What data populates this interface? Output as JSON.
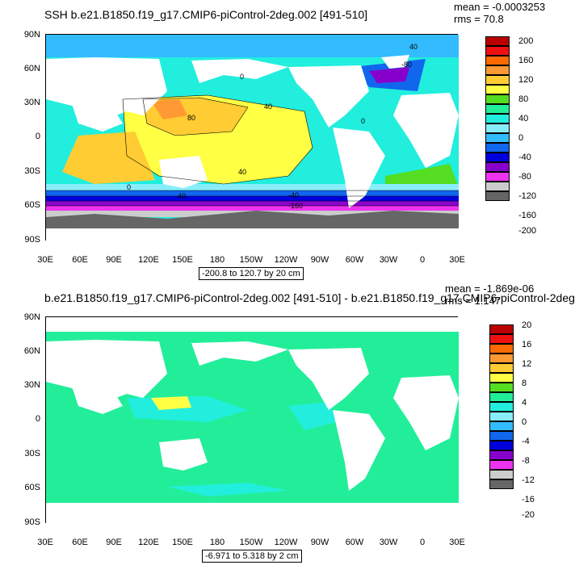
{
  "panels": [
    {
      "title": "SSH b.e21.B1850.f19_g17.CMIP6-piControl-2deg.002 [491-510]",
      "mean": "mean = -0.0003253",
      "rms": "rms = 70.8",
      "range_label": "-200.8 to 120.7 by 20 cm",
      "colorbar_labels": [
        "200",
        "160",
        "120",
        "80",
        "40",
        "0",
        "-40",
        "-80",
        "-120",
        "-160",
        "-200"
      ],
      "contour_labels": [
        "0",
        "40",
        "80",
        "40",
        "0",
        "-40",
        "-160",
        "-40",
        "-80",
        "40",
        "0"
      ]
    },
    {
      "title": "b.e21.B1850.f19_g17.CMIP6-piControl-2deg.002 [491-510] - b.e21.B1850.f19_g17.CMIP6-piControl-2deg",
      "mean": "mean = -1.869e-06",
      "rms": "rms = 1.147",
      "range_label": "-6.971 to 5.318 by 2 cm",
      "colorbar_labels": [
        "20",
        "16",
        "12",
        "8",
        "4",
        "0",
        "-4",
        "-8",
        "-12",
        "-16",
        "-20"
      ]
    }
  ],
  "lat_labels": [
    "90N",
    "60N",
    "30N",
    "0",
    "30S",
    "60S",
    "90S"
  ],
  "lon_labels": [
    "30E",
    "60E",
    "90E",
    "120E",
    "150E",
    "180",
    "150W",
    "120W",
    "90W",
    "60W",
    "30W",
    "0",
    "30E"
  ],
  "colorbar_colors": [
    "#bb0000",
    "#ee1111",
    "#ff6a00",
    "#ff9933",
    "#ffcc33",
    "#ffff44",
    "#55dd22",
    "#22ee99",
    "#22eedd",
    "#88eeff",
    "#33bbff",
    "#1166ee",
    "#0000dd",
    "#8800cc",
    "#ee33ee",
    "#cccccc",
    "#666666"
  ]
}
